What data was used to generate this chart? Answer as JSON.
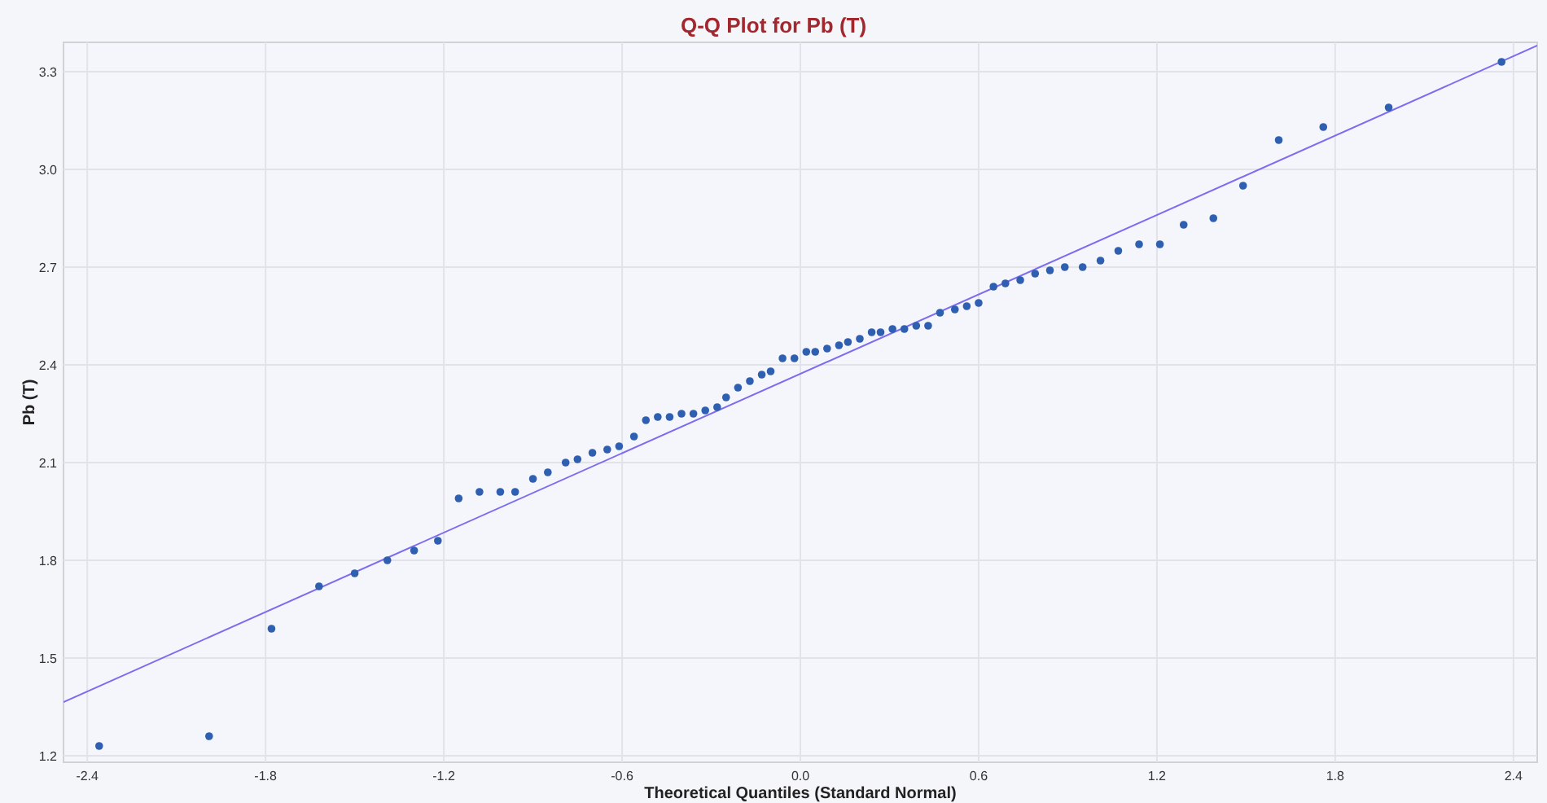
{
  "chart_data": {
    "type": "scatter",
    "title": "Q-Q Plot for Pb (T)",
    "xlabel": "Theoretical Quantiles (Standard Normal)",
    "ylabel": "Pb (T)",
    "xlim": [
      -2.48,
      2.48
    ],
    "ylim": [
      1.18,
      3.39
    ],
    "xticks": [
      -2.4,
      -1.8,
      -1.2,
      {
        "value": -0.6,
        "label": "-0.6"
      },
      {
        "value": 0,
        "label": "0.0"
      },
      0.6,
      1.2,
      1.8,
      2.4
    ],
    "yticks": [
      1.2,
      1.5,
      1.8,
      2.1,
      2.4,
      2.7,
      {
        "value": 3,
        "label": "3.0"
      },
      3.3
    ],
    "grid": true,
    "marker": "circle",
    "series": [
      {
        "color": "#2f5fb0",
        "x": [
          -2.36,
          -1.99,
          -1.78,
          -1.62,
          -1.5,
          -1.39,
          -1.3,
          -1.22,
          -1.15,
          -1.08,
          -1.01,
          -0.96,
          -0.9,
          -0.85,
          -0.79,
          -0.75,
          -0.7,
          -0.65,
          -0.61,
          -0.56,
          -0.52,
          -0.48,
          -0.44,
          -0.4,
          -0.36,
          -0.32,
          -0.28,
          -0.25,
          -0.21,
          -0.17,
          -0.13,
          -0.1,
          -0.06,
          -0.02,
          0.02,
          0.05,
          0.09,
          0.13,
          0.16,
          0.2,
          0.24,
          0.27,
          0.31,
          0.35,
          0.39,
          0.43,
          0.47,
          0.52,
          0.56,
          0.6,
          0.65,
          0.69,
          0.74,
          0.79,
          0.84,
          0.89,
          0.95,
          1.01,
          1.07,
          1.14,
          1.21,
          1.29,
          1.39,
          1.49,
          1.61,
          1.76,
          1.98,
          2.36
        ],
        "values": [
          1.23,
          1.26,
          1.59,
          1.72,
          1.76,
          1.8,
          1.83,
          1.86,
          1.99,
          2.01,
          2.01,
          2.01,
          2.05,
          2.07,
          2.1,
          2.11,
          2.13,
          2.14,
          2.15,
          2.18,
          2.23,
          2.24,
          2.24,
          2.25,
          2.25,
          2.26,
          2.27,
          2.3,
          2.33,
          2.35,
          2.37,
          2.38,
          2.42,
          2.42,
          2.44,
          2.44,
          2.45,
          2.46,
          2.47,
          2.48,
          2.5,
          2.5,
          2.51,
          2.51,
          2.52,
          2.52,
          2.56,
          2.57,
          2.58,
          2.59,
          2.64,
          2.65,
          2.66,
          2.68,
          2.69,
          2.7,
          2.7,
          2.72,
          2.75,
          2.77,
          2.77,
          2.83,
          2.85,
          2.95,
          3.09,
          3.13,
          3.19,
          3.33
        ]
      },
      {
        "type": "line",
        "color": "#7b6cf0",
        "line_style": "solid",
        "marker": "none",
        "x": [
          -2.48,
          2.48
        ],
        "values": [
          1.365,
          3.38
        ]
      }
    ]
  }
}
